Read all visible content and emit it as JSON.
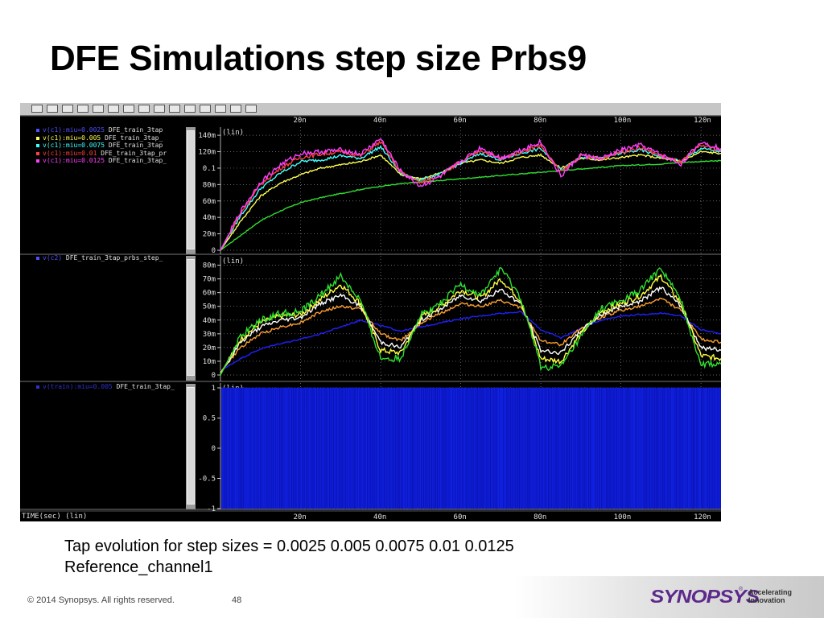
{
  "slide": {
    "title": "DFE Simulations step size Prbs9",
    "caption_line1": "Tap evolution for step sizes = 0.0025 0.005 0.0075 0.01 0.0125",
    "caption_line2": "Reference_channel1",
    "copyright": "© 2014 Synopsys. All rights reserved.",
    "page_number": "48",
    "logo": "SYNOPSYS",
    "logo_reg": "®",
    "tagline_1": "Accelerating",
    "tagline_2": "Innovation"
  },
  "viewer": {
    "time_axis_label": "TIME(sec) (lin)",
    "background": "#000000",
    "grid_color": "#8a8a8a",
    "toolbar_icons": [
      "zoom-in-icon",
      "zoom-out-icon",
      "zoom-fit-icon",
      "grid-icon",
      "bars-icon",
      "print-icon",
      "measure-icon",
      "cursor-icon",
      "pan-left-icon",
      "pan-right-icon",
      "copy-icon",
      "delete-icon",
      "edit-icon",
      "window-icon",
      "export-icon"
    ],
    "panels": [
      {
        "legend": [
          {
            "signal": "v(c1):miu=0.0025",
            "file": "DFE_train_3tap",
            "color": "#5050ff"
          },
          {
            "signal": "v(c1):miu=0.005",
            "file": "DFE_train_3tap_",
            "color": "#ffff50"
          },
          {
            "signal": "v(c1):miu=0.0075",
            "file": "DFE_train_3tap",
            "color": "#40ffff"
          },
          {
            "signal": "v(c1):miu=0.01",
            "file": "DFE_train_3tap_pr",
            "color": "#ff4040"
          },
          {
            "signal": "v(c1):miu=0.0125",
            "file": "DFE_train_3tap_",
            "color": "#ff40ff"
          }
        ]
      },
      {
        "legend": [
          {
            "signal": "v(c2)",
            "file": "DFE_train_3tap_prbs_step_",
            "color": "#5050ff"
          }
        ]
      },
      {
        "legend": [
          {
            "signal": "v(train):miu=0.005",
            "file": "DFE_train_3tap_",
            "color": "#3030d0"
          }
        ]
      }
    ]
  },
  "chart_data": [
    {
      "type": "line",
      "panel": "c1",
      "unit_label": "(lin)",
      "xlim": [
        0,
        125
      ],
      "x_unit": "ns",
      "x_ticks": [
        "20n",
        "40n",
        "60n",
        "80n",
        "100n",
        "120n"
      ],
      "ylim": [
        0,
        0.145
      ],
      "y_ticks": [
        0,
        0.02,
        0.04,
        0.06,
        0.08,
        0.1,
        0.12,
        0.14
      ],
      "y_tick_labels": [
        "0",
        "20m",
        "40m",
        "60m",
        "80m",
        "0.1",
        "120m",
        "140m"
      ],
      "grid": true,
      "x": [
        0,
        5,
        10,
        15,
        20,
        25,
        30,
        35,
        40,
        45,
        50,
        55,
        60,
        65,
        70,
        75,
        80,
        85,
        90,
        95,
        100,
        105,
        110,
        115,
        120,
        125
      ],
      "series": [
        {
          "name": "miu=0.0025",
          "color": "#30e030",
          "values": [
            0,
            0.018,
            0.036,
            0.048,
            0.058,
            0.064,
            0.069,
            0.074,
            0.078,
            0.081,
            0.083,
            0.085,
            0.087,
            0.089,
            0.091,
            0.093,
            0.095,
            0.097,
            0.099,
            0.101,
            0.103,
            0.104,
            0.105,
            0.107,
            0.108,
            0.109
          ]
        },
        {
          "name": "miu=0.005",
          "color": "#ffff50",
          "values": [
            0,
            0.035,
            0.066,
            0.082,
            0.092,
            0.1,
            0.104,
            0.108,
            0.116,
            0.092,
            0.087,
            0.094,
            0.106,
            0.11,
            0.106,
            0.113,
            0.116,
            0.1,
            0.112,
            0.11,
            0.113,
            0.116,
            0.112,
            0.108,
            0.12,
            0.118
          ]
        },
        {
          "name": "miu=0.0075",
          "color": "#40ffff",
          "values": [
            0,
            0.042,
            0.075,
            0.094,
            0.108,
            0.11,
            0.115,
            0.112,
            0.126,
            0.094,
            0.085,
            0.093,
            0.106,
            0.118,
            0.11,
            0.118,
            0.124,
            0.098,
            0.114,
            0.112,
            0.118,
            0.122,
            0.114,
            0.108,
            0.124,
            0.12
          ]
        },
        {
          "name": "miu=0.01",
          "color": "#ff4040",
          "values": [
            0,
            0.045,
            0.08,
            0.1,
            0.113,
            0.117,
            0.12,
            0.115,
            0.132,
            0.095,
            0.082,
            0.092,
            0.107,
            0.122,
            0.111,
            0.12,
            0.128,
            0.095,
            0.115,
            0.112,
            0.12,
            0.125,
            0.115,
            0.107,
            0.128,
            0.122
          ]
        },
        {
          "name": "miu=0.0125",
          "color": "#ff40ff",
          "values": [
            0,
            0.047,
            0.083,
            0.104,
            0.118,
            0.12,
            0.122,
            0.117,
            0.136,
            0.096,
            0.078,
            0.09,
            0.108,
            0.125,
            0.112,
            0.122,
            0.132,
            0.09,
            0.116,
            0.111,
            0.122,
            0.128,
            0.116,
            0.105,
            0.132,
            0.124
          ]
        }
      ]
    },
    {
      "type": "line",
      "panel": "c2",
      "unit_label": "(lin)",
      "xlim": [
        0,
        125
      ],
      "x_unit": "ns",
      "ylim": [
        0,
        0.085
      ],
      "y_ticks": [
        0,
        0.01,
        0.02,
        0.03,
        0.04,
        0.05,
        0.06,
        0.07,
        0.08
      ],
      "y_tick_labels": [
        "0",
        "10m",
        "20m",
        "30m",
        "40m",
        "50m",
        "60m",
        "70m",
        "80m"
      ],
      "grid": true,
      "x": [
        0,
        5,
        10,
        15,
        20,
        25,
        30,
        35,
        40,
        45,
        50,
        55,
        60,
        65,
        70,
        75,
        80,
        85,
        90,
        95,
        100,
        105,
        110,
        115,
        120,
        125
      ],
      "series": [
        {
          "name": "miu=0.0025",
          "color": "#2020ff",
          "values": [
            0.003,
            0.012,
            0.019,
            0.023,
            0.026,
            0.03,
            0.035,
            0.04,
            0.036,
            0.032,
            0.035,
            0.038,
            0.041,
            0.043,
            0.045,
            0.046,
            0.033,
            0.027,
            0.034,
            0.04,
            0.043,
            0.044,
            0.045,
            0.043,
            0.033,
            0.03
          ]
        },
        {
          "name": "miu=0.005",
          "color": "#ffa030",
          "values": [
            0.002,
            0.02,
            0.03,
            0.035,
            0.038,
            0.046,
            0.05,
            0.048,
            0.03,
            0.025,
            0.038,
            0.045,
            0.052,
            0.05,
            0.054,
            0.049,
            0.025,
            0.022,
            0.034,
            0.042,
            0.047,
            0.05,
            0.056,
            0.047,
            0.026,
            0.024
          ]
        },
        {
          "name": "miu=0.0075",
          "color": "#ffffff",
          "values": [
            0.001,
            0.024,
            0.035,
            0.04,
            0.042,
            0.052,
            0.058,
            0.05,
            0.024,
            0.02,
            0.04,
            0.048,
            0.058,
            0.054,
            0.062,
            0.052,
            0.018,
            0.016,
            0.032,
            0.044,
            0.05,
            0.054,
            0.064,
            0.05,
            0.02,
            0.018
          ]
        },
        {
          "name": "miu=0.01",
          "color": "#ffff40",
          "values": [
            0.001,
            0.026,
            0.038,
            0.043,
            0.044,
            0.055,
            0.066,
            0.052,
            0.018,
            0.016,
            0.042,
            0.05,
            0.062,
            0.056,
            0.07,
            0.054,
            0.012,
            0.01,
            0.03,
            0.046,
            0.052,
            0.058,
            0.072,
            0.052,
            0.014,
            0.012
          ]
        },
        {
          "name": "miu=0.0125",
          "color": "#30e030",
          "values": [
            0,
            0.028,
            0.04,
            0.045,
            0.046,
            0.058,
            0.072,
            0.054,
            0.012,
            0.012,
            0.044,
            0.052,
            0.066,
            0.058,
            0.078,
            0.056,
            0.006,
            0.006,
            0.028,
            0.048,
            0.054,
            0.062,
            0.078,
            0.054,
            0.008,
            0.008
          ]
        }
      ]
    },
    {
      "type": "line",
      "panel": "train",
      "unit_label": "(lin)",
      "xlim": [
        0,
        125
      ],
      "x_unit": "ns",
      "ylim": [
        -1,
        1
      ],
      "y_ticks": [
        -1,
        -0.5,
        0,
        0.5,
        1
      ],
      "y_tick_labels": [
        "-1",
        "-0.5",
        "0",
        "0.5",
        "1"
      ],
      "grid": true,
      "series": [
        {
          "name": "miu=0.005",
          "color": "#1020e0",
          "waveform": "PRBS9 bit stream toggling between -1 and 1"
        }
      ]
    }
  ]
}
